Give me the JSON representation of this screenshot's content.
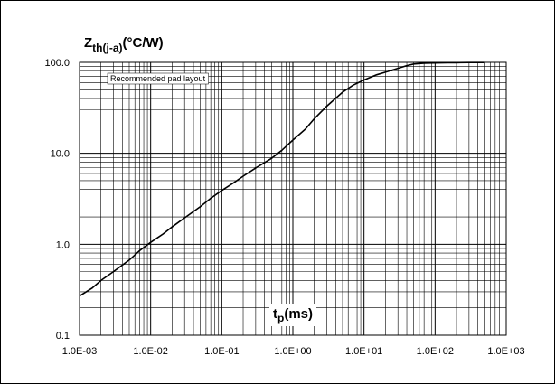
{
  "chart_data": {
    "type": "line",
    "title_main": "Z",
    "title_sub": "th(j-a)",
    "title_unit": "(°C/W)",
    "xlabel_main": "t",
    "xlabel_sub": "p",
    "xlabel_unit": "(ms)",
    "annotation": "Recommended pad layout",
    "x_scale": "log",
    "y_scale": "log",
    "xlim": [
      0.001,
      1000
    ],
    "ylim": [
      0.1,
      100
    ],
    "x_ticks": [
      0.001,
      0.01,
      0.1,
      1,
      10,
      100,
      1000
    ],
    "x_tick_labels": [
      "1.0E-03",
      "1.0E-02",
      "1.0E-01",
      "1.0E+00",
      "1.0E+01",
      "1.0E+02",
      "1.0E+03"
    ],
    "y_ticks": [
      0.1,
      1,
      10,
      100
    ],
    "y_tick_labels": [
      "0.1",
      "1.0",
      "10.0",
      "100.0"
    ],
    "grid": true,
    "line_color": "#000000",
    "series": [
      {
        "x": [
          0.001,
          0.0015,
          0.002,
          0.003,
          0.005,
          0.007,
          0.01,
          0.015,
          0.02,
          0.03,
          0.05,
          0.07,
          0.1,
          0.15,
          0.2,
          0.3,
          0.5,
          0.7,
          1,
          1.5,
          2,
          3,
          5,
          7,
          10,
          15,
          20,
          30,
          40,
          50,
          70,
          100,
          150,
          200,
          300,
          500
        ],
        "y": [
          0.27,
          0.33,
          0.4,
          0.5,
          0.67,
          0.85,
          1.05,
          1.3,
          1.55,
          1.95,
          2.6,
          3.2,
          3.9,
          4.8,
          5.6,
          6.9,
          8.8,
          10.8,
          14,
          18.5,
          24,
          33,
          47,
          56,
          64,
          73,
          78,
          86,
          92,
          96,
          98,
          98.5,
          99,
          99.2,
          99.5,
          99.5
        ]
      }
    ]
  }
}
